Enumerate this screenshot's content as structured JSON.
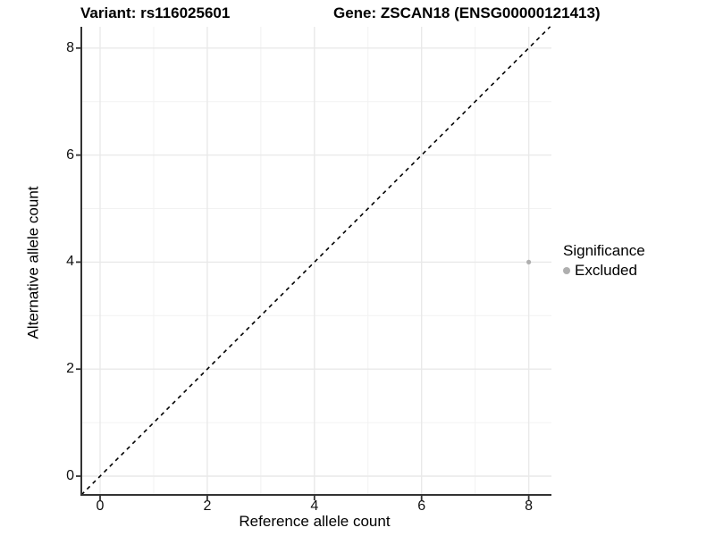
{
  "titles": {
    "left": "Variant: rs116025601",
    "right": "Gene: ZSCAN18 (ENSG00000121413)"
  },
  "axes": {
    "x_label": "Reference allele count",
    "y_label": "Alternative allele count"
  },
  "legend": {
    "title": "Significance",
    "items": [
      {
        "label": "Excluded",
        "color": "#afafaf"
      }
    ]
  },
  "chart_data": {
    "type": "scatter",
    "title_left": "Variant: rs116025601",
    "title_right": "Gene: ZSCAN18 (ENSG00000121413)",
    "xlabel": "Reference allele count",
    "ylabel": "Alternative allele count",
    "x_ticks": [
      0,
      2,
      4,
      6,
      8
    ],
    "y_ticks": [
      0,
      2,
      4,
      6,
      8
    ],
    "xlim": [
      -0.35,
      8.43
    ],
    "ylim": [
      -0.35,
      8.4
    ],
    "grid": "on",
    "points": [
      {
        "x": 8,
        "y": 4,
        "series": "Excluded"
      }
    ],
    "series": [
      {
        "name": "Excluded",
        "color": "#afafaf"
      }
    ],
    "reference_line": {
      "type": "identity",
      "slope": 1,
      "intercept": 0,
      "style": "dashed",
      "color": "#000000"
    },
    "legend": {
      "title": "Significance",
      "entries": [
        "Excluded"
      ],
      "position": "right"
    }
  },
  "colors": {
    "background": "#ffffff",
    "grid_major": "#e9e9e9",
    "grid_minor": "#f2f2f2",
    "axis_line": "#333333",
    "tick_text": "#111111",
    "point": "#afafaf",
    "dashed_line": "#000000"
  }
}
